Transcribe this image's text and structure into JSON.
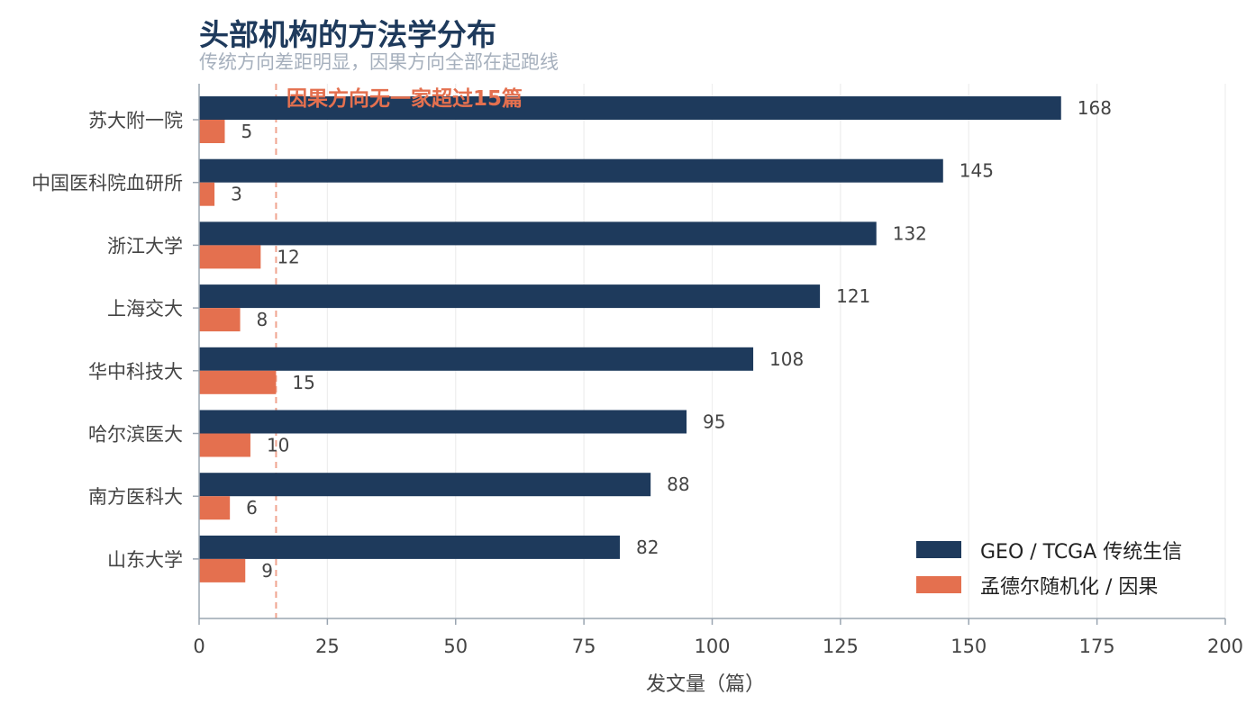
{
  "chart_data": {
    "type": "bar",
    "orientation": "horizontal",
    "title": "头部机构的方法学分布",
    "subtitle": "传统方向差距明显，因果方向全部在起跑线",
    "xlabel": "发文量（篇）",
    "ylabel": "",
    "xlim": [
      0,
      200
    ],
    "xticks": [
      0,
      25,
      50,
      75,
      100,
      125,
      150,
      175,
      200
    ],
    "grid": "vertical",
    "legend_position": "bottom-right",
    "categories": [
      "苏大附一院",
      "中国医科院血研所",
      "浙江大学",
      "上海交大",
      "华中科技大",
      "哈尔滨医大",
      "南方医科大",
      "山东大学"
    ],
    "series": [
      {
        "name": "GEO / TCGA 传统生信",
        "color": "#1e3a5c",
        "values": [
          168,
          145,
          132,
          121,
          108,
          95,
          88,
          82
        ]
      },
      {
        "name": "孟德尔随机化 / 因果",
        "color": "#e4704f",
        "values": [
          5,
          3,
          12,
          8,
          15,
          10,
          6,
          9
        ]
      }
    ],
    "reference_line": {
      "x": 15,
      "color": "#f0a48f",
      "label": "因果方向无一家超过15篇",
      "label_color": "#e4704f"
    },
    "colors": {
      "title": "#1e3a5c",
      "subtitle": "#a6b0bd",
      "axis": "#9aa5b1",
      "grid": "#eeeeee",
      "text": "#444444"
    }
  }
}
